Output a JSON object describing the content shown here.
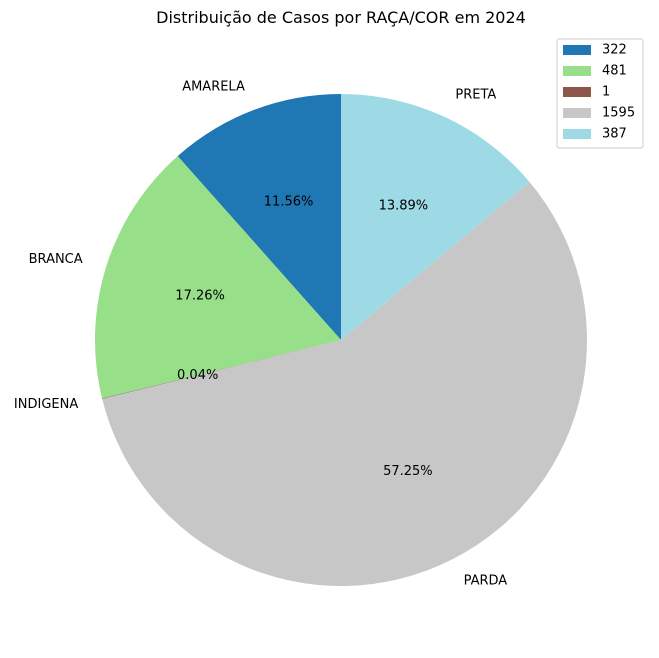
{
  "chart_data": {
    "type": "pie",
    "title": "Distribuição de Casos por RAÇA/COR em 2024",
    "categories": [
      "AMARELA",
      "BRANCA",
      "INDIGENA",
      "PARDA",
      "PRETA"
    ],
    "values": [
      322,
      481,
      1,
      1595,
      387
    ],
    "percent_labels": [
      "11.56%",
      "17.26%",
      "0.04%",
      "57.25%",
      "13.89%"
    ],
    "legend_entries": [
      "322",
      "481",
      "1",
      "1595",
      "387"
    ],
    "colors": [
      "#1f77b4",
      "#98df8a",
      "#8c564b",
      "#c7c7c7",
      "#9edae5"
    ],
    "start_angle_deg": 90,
    "direction": "counterclockwise",
    "legend_position": "top-right"
  }
}
